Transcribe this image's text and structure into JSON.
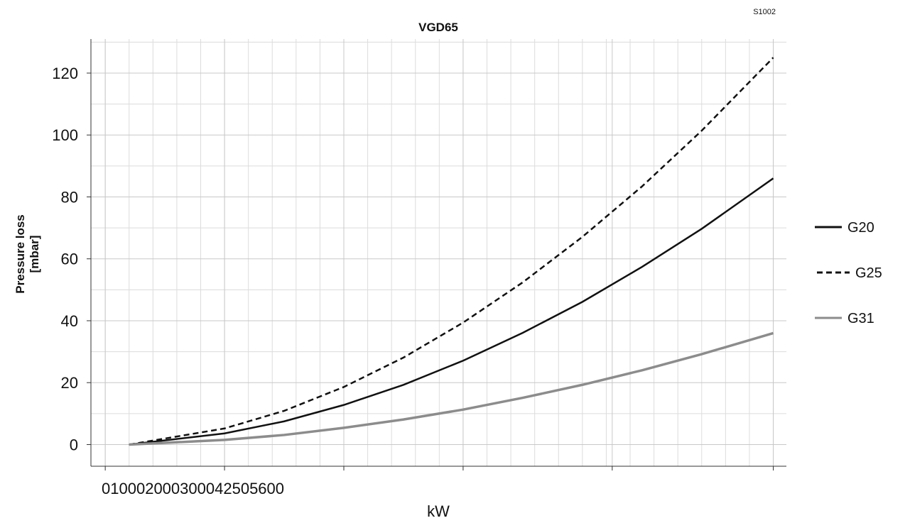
{
  "chart_data": {
    "type": "line",
    "title": "VGD65",
    "code": "S1002",
    "y_label": [
      "Pressure loss",
      "[mbar]"
    ],
    "x_label": "kW",
    "x": [
      200,
      1000,
      1500,
      2000,
      2500,
      3000,
      3500,
      4000,
      4500,
      5000,
      5600
    ],
    "series": [
      {
        "name": "G20",
        "color": "#111111",
        "dash": "solid",
        "values": [
          0,
          3.6,
          7.5,
          12.8,
          19.3,
          27.1,
          36.1,
          46.1,
          57.4,
          69.7,
          86
        ]
      },
      {
        "name": "G25",
        "color": "#111111",
        "dash": "dashed",
        "values": [
          0,
          5.2,
          10.9,
          18.6,
          28.1,
          39.4,
          52.4,
          67.1,
          83.4,
          101.4,
          125
        ]
      },
      {
        "name": "G31",
        "color": "#8c8c8c",
        "dash": "solid",
        "values": [
          0,
          1.5,
          3.1,
          5.4,
          8.1,
          11.3,
          15.1,
          19.3,
          24.0,
          29.2,
          36
        ]
      }
    ],
    "xlim": [
      -120,
      5710
    ],
    "ylim": [
      -7,
      131
    ],
    "xticks": [
      0,
      1000,
      2000,
      3000,
      4250,
      5600
    ],
    "yticks": [
      0,
      20,
      40,
      60,
      80,
      100,
      120
    ],
    "grid": true,
    "legend": "right"
  }
}
